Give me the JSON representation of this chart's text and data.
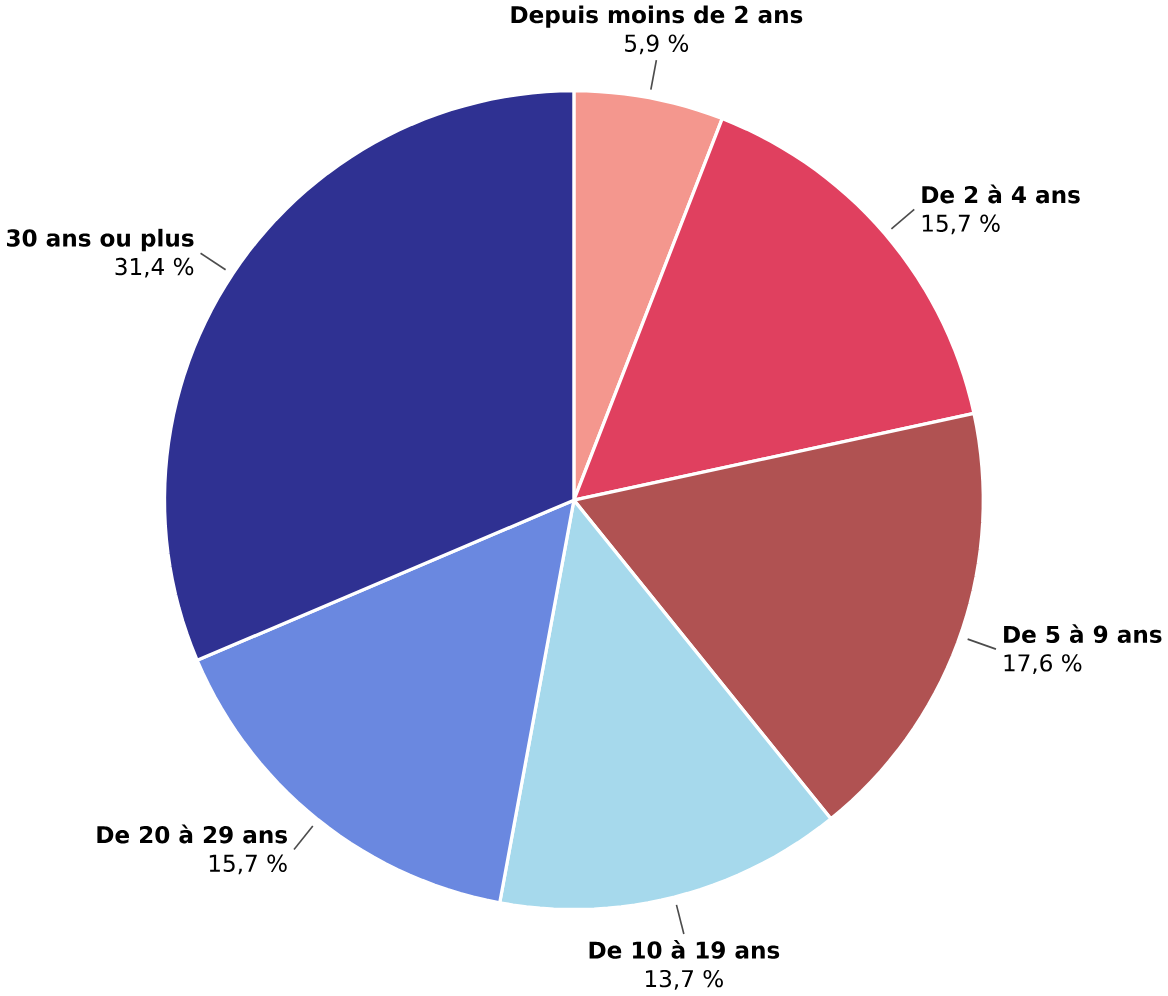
{
  "chart_data": {
    "type": "pie",
    "categories": [
      "Depuis moins de 2 ans",
      "De 2 à 4 ans",
      "De 5 à 9 ans",
      "De 10 à 19 ans",
      "De 20 à 29 ans",
      "30 ans ou plus"
    ],
    "values": [
      5.9,
      15.7,
      17.6,
      13.7,
      15.7,
      31.4
    ],
    "value_labels": [
      "5,9 %",
      "15,7 %",
      "17,6 %",
      "13,7 %",
      "15,7 %",
      "31,4 %"
    ],
    "colors": [
      "#f4978e",
      "#e0405f",
      "#b05252",
      "#a6d9ec",
      "#6a88e0",
      "#2f3192"
    ]
  }
}
